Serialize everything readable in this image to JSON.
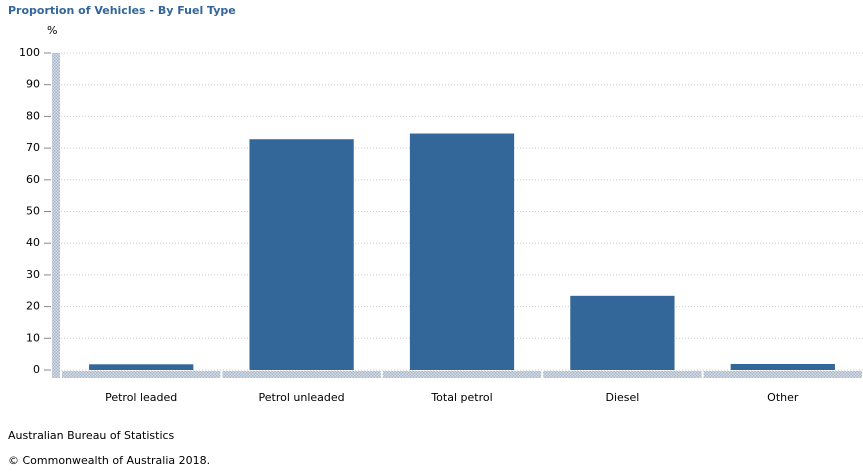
{
  "chart_data": {
    "type": "bar",
    "title": "Proportion of Vehicles - By Fuel Type",
    "y_label": "%",
    "categories": [
      "Petrol leaded",
      "Petrol unleaded",
      "Total petrol",
      "Diesel",
      "Other"
    ],
    "values": [
      1.8,
      72.8,
      74.6,
      23.4,
      1.9
    ],
    "color": "#336699",
    "ylim": [
      0,
      100
    ],
    "yticks": [
      0,
      10,
      20,
      30,
      40,
      50,
      60,
      70,
      80,
      90,
      100
    ],
    "grid": true,
    "source": "Australian Bureau of Statistics",
    "copyright": "© Commonwealth of Australia 2018."
  }
}
